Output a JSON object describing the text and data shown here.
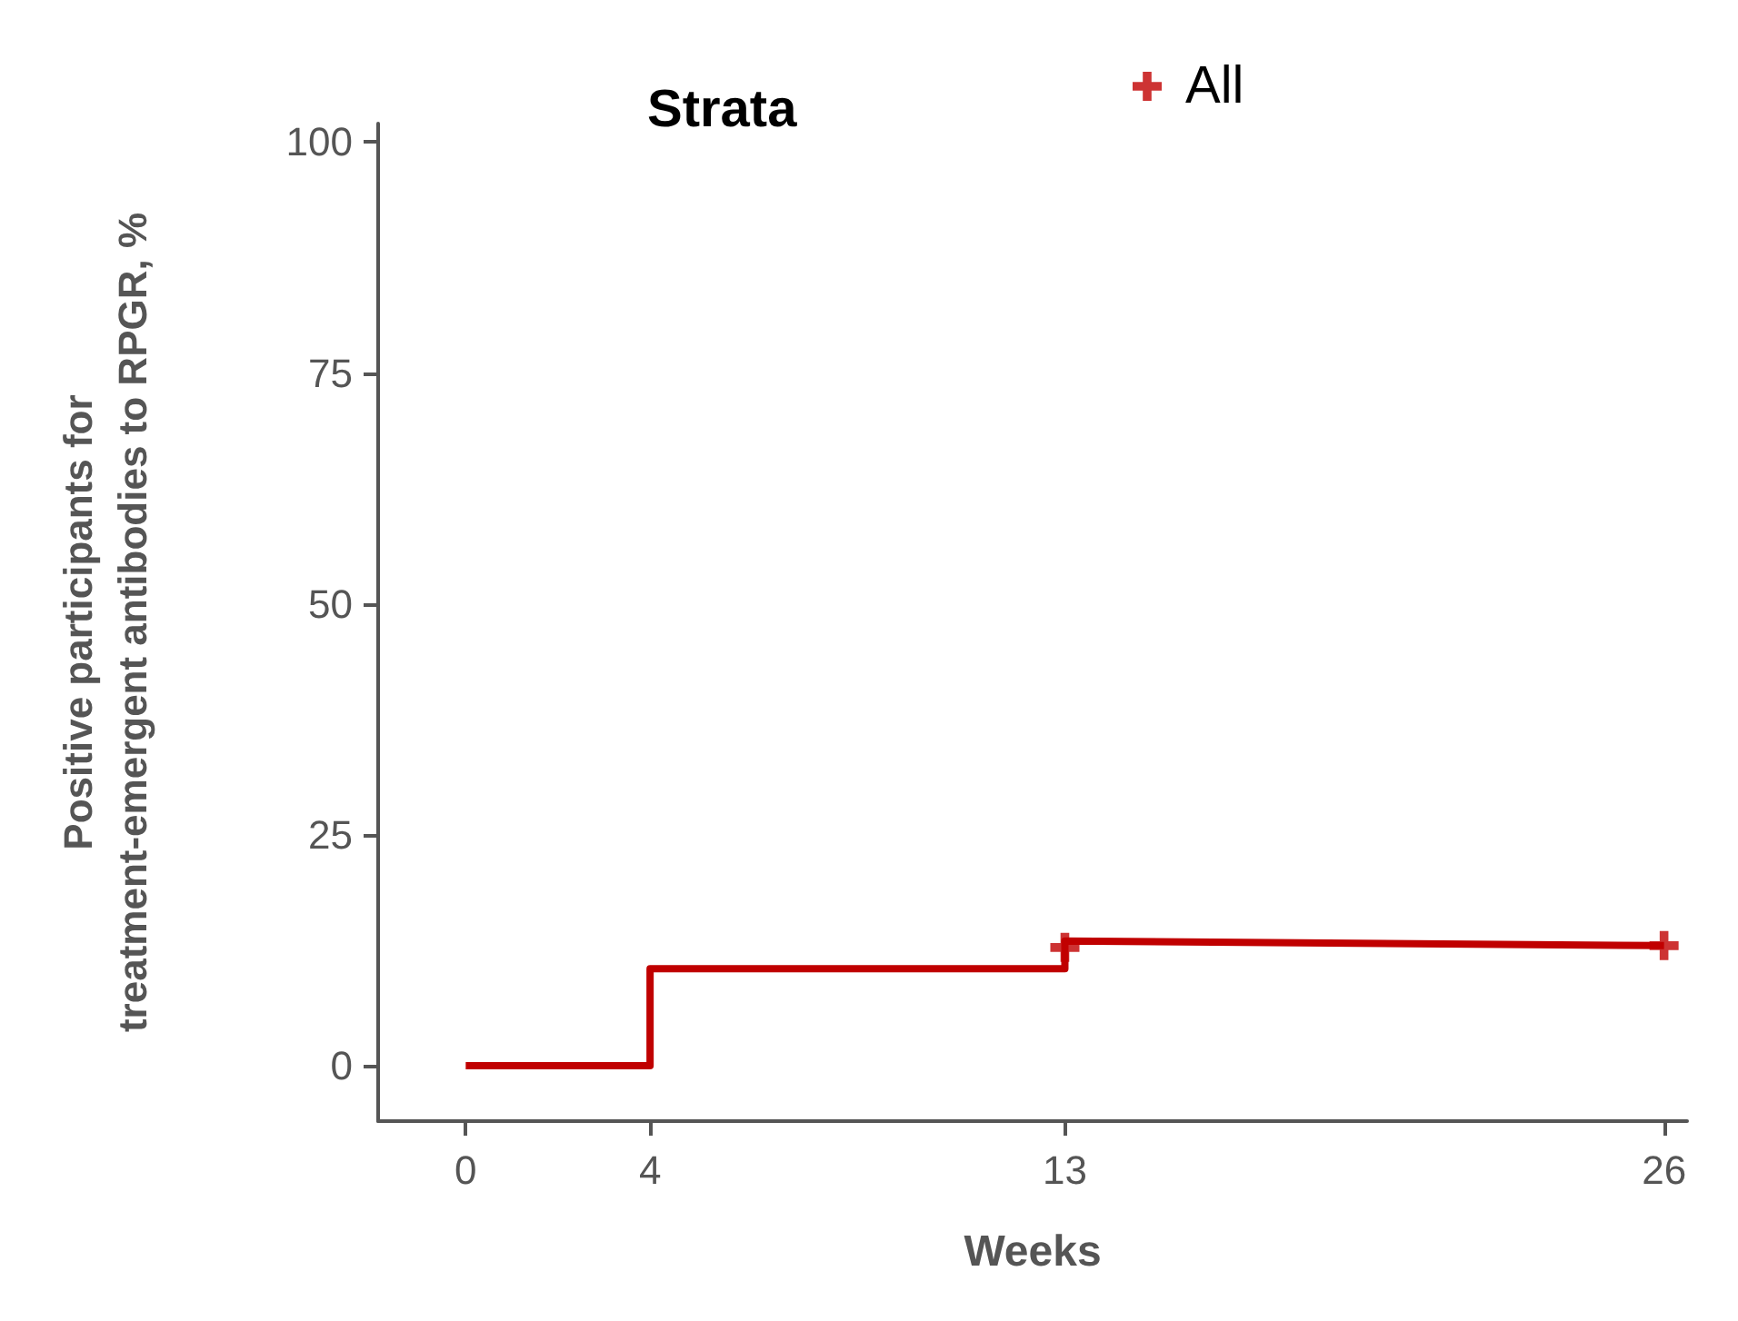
{
  "chart_data": {
    "type": "line",
    "xlabel": "Weeks",
    "ylabel": "Positive participants for\ntreatment-emergent antibodies to RPGR, %",
    "legend_title": "Strata",
    "legend": "top",
    "grid": false,
    "xlim": [
      -1.9,
      26.5
    ],
    "xticks": [
      0,
      4,
      13,
      26
    ],
    "ylim": [
      -6,
      102
    ],
    "yticks": [
      0,
      25,
      50,
      75,
      100
    ],
    "series": [
      {
        "color": "#c00000",
        "marker": "none",
        "x": [
          0,
          4,
          4,
          13,
          13,
          26
        ],
        "values": [
          0,
          0,
          10.5,
          10.5,
          13.5,
          13
        ]
      },
      {
        "type": "scatter",
        "name": "All",
        "color": "#c00000",
        "marker": "cross",
        "x": [
          13,
          26
        ],
        "values": [
          12.8,
          13
        ]
      }
    ]
  }
}
